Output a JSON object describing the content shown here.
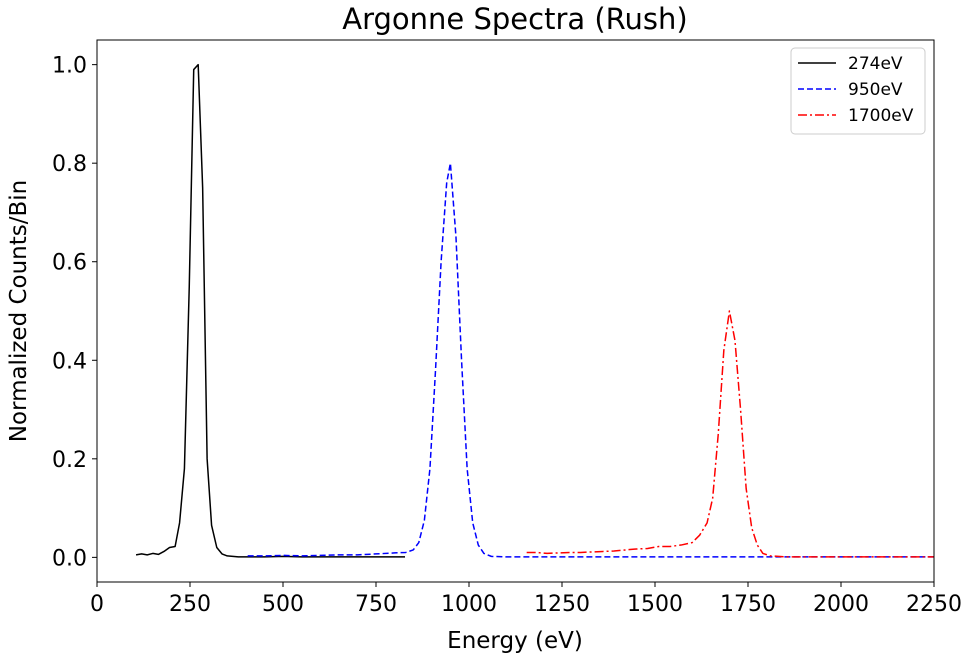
{
  "chart_data": {
    "type": "line",
    "title": "Argonne Spectra (Rush)",
    "xlabel": "Energy (eV)",
    "ylabel": "Normalized Counts/Bin",
    "xlim": [
      0,
      2250
    ],
    "ylim": [
      -0.05,
      1.05
    ],
    "x_ticks": [
      0,
      250,
      500,
      750,
      1000,
      1250,
      1500,
      1750,
      2000,
      2250
    ],
    "x_tick_labels": [
      "0",
      "250",
      "500",
      "750",
      "1000",
      "1250",
      "1500",
      "1750",
      "2000",
      "2250"
    ],
    "y_ticks": [
      0.0,
      0.2,
      0.4,
      0.6,
      0.8,
      1.0
    ],
    "y_tick_labels": [
      "0.0",
      "0.2",
      "0.4",
      "0.6",
      "0.8",
      "1.0"
    ],
    "grid": false,
    "legend_position": "top-right",
    "series": [
      {
        "name": "274eV",
        "color": "#000000",
        "dash": "solid",
        "x": [
          105,
          120,
          135,
          150,
          165,
          180,
          195,
          210,
          222,
          235,
          248,
          260,
          272,
          284,
          296,
          308,
          322,
          336,
          350,
          365,
          380,
          400,
          450,
          500,
          550,
          600,
          650,
          700,
          750,
          800,
          828
        ],
        "y": [
          0.005,
          0.007,
          0.005,
          0.008,
          0.006,
          0.012,
          0.02,
          0.022,
          0.07,
          0.18,
          0.55,
          0.99,
          1.0,
          0.75,
          0.2,
          0.065,
          0.02,
          0.007,
          0.003,
          0.002,
          0.001,
          0.001,
          0.001,
          0.002,
          0.001,
          0.001,
          0.001,
          0.001,
          0.001,
          0.001,
          0.001
        ]
      },
      {
        "name": "950eV",
        "color": "#0000ff",
        "dash": "dashed",
        "x": [
          405,
          450,
          500,
          550,
          600,
          650,
          700,
          750,
          800,
          830,
          850,
          865,
          880,
          895,
          910,
          925,
          940,
          950,
          965,
          980,
          995,
          1010,
          1025,
          1040,
          1060,
          1100,
          1200,
          1300,
          1400,
          1500,
          1600,
          1700,
          1800,
          1900,
          2000,
          2100,
          2250
        ],
        "y": [
          0.003,
          0.003,
          0.004,
          0.003,
          0.004,
          0.005,
          0.005,
          0.007,
          0.009,
          0.01,
          0.015,
          0.03,
          0.075,
          0.18,
          0.38,
          0.6,
          0.76,
          0.8,
          0.65,
          0.4,
          0.18,
          0.07,
          0.025,
          0.008,
          0.002,
          0.001,
          0.001,
          0.001,
          0.001,
          0.001,
          0.001,
          0.001,
          0.001,
          0.001,
          0.001,
          0.001,
          0.001
        ]
      },
      {
        "name": "1700eV",
        "color": "#ff0000",
        "dash": "dashdot",
        "x": [
          1155,
          1180,
          1210,
          1240,
          1270,
          1300,
          1330,
          1360,
          1390,
          1420,
          1450,
          1480,
          1510,
          1540,
          1570,
          1600,
          1620,
          1640,
          1655,
          1670,
          1685,
          1700,
          1715,
          1730,
          1745,
          1760,
          1775,
          1790,
          1810,
          1850,
          1900,
          1950,
          2000,
          2100,
          2250
        ],
        "y": [
          0.01,
          0.01,
          0.008,
          0.009,
          0.01,
          0.01,
          0.011,
          0.012,
          0.013,
          0.015,
          0.017,
          0.018,
          0.022,
          0.022,
          0.025,
          0.03,
          0.045,
          0.07,
          0.12,
          0.25,
          0.42,
          0.5,
          0.44,
          0.3,
          0.14,
          0.06,
          0.025,
          0.008,
          0.003,
          0.001,
          0.001,
          0.001,
          0.001,
          0.001,
          0.001
        ]
      }
    ]
  }
}
